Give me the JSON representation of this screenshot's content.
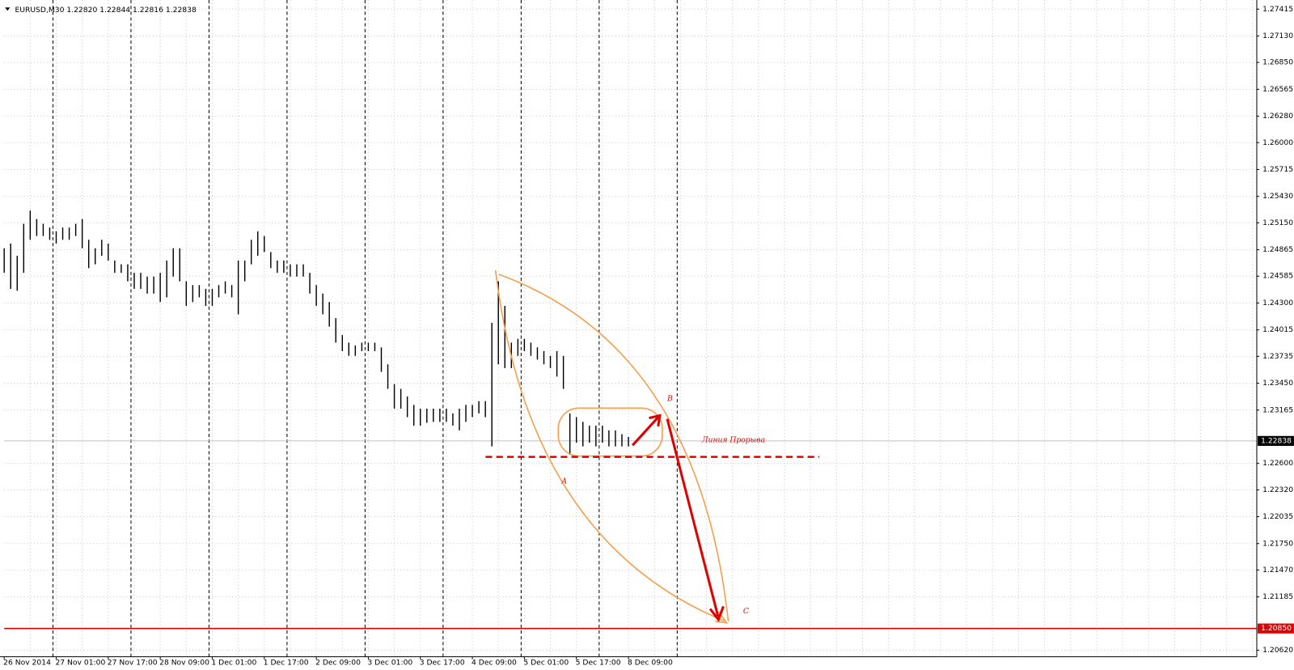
{
  "chart_data": {
    "type": "range_bar",
    "title": "EURUSD,M30  1.22820 1.22844 1.22816 1.22838",
    "categories": [
      "26 Nov 2014",
      null,
      null,
      null,
      null,
      null,
      null,
      null,
      "27 Nov 01:00",
      null,
      null,
      null,
      null,
      null,
      null,
      null,
      "27 Nov 17:00",
      null,
      null,
      null,
      null,
      null,
      null,
      null,
      "28 Nov 09:00",
      null,
      null,
      null,
      null,
      null,
      null,
      null,
      "1 Dec 01:00",
      null,
      null,
      null,
      null,
      null,
      null,
      null,
      "1 Dec 17:00",
      null,
      null,
      null,
      null,
      null,
      null,
      null,
      "2 Dec 09:00",
      null,
      null,
      null,
      null,
      null,
      null,
      null,
      "3 Dec 01:00",
      null,
      null,
      null,
      null,
      null,
      null,
      null,
      "3 Dec 17:00",
      null,
      null,
      null,
      null,
      null,
      null,
      null,
      "4 Dec 09:00",
      null,
      null,
      null,
      null,
      null,
      null,
      null,
      "5 Dec 01:00",
      null,
      null,
      null,
      null,
      null,
      null,
      null,
      "5 Dec 17:00",
      null,
      null,
      null,
      null,
      null,
      null,
      null,
      "8 Dec 09:00"
    ],
    "high": [
      1.2488,
      1.2493,
      1.248,
      1.2514,
      1.2528,
      1.2519,
      1.2514,
      1.251,
      1.2506,
      1.251,
      1.251,
      1.2514,
      1.2519,
      1.2497,
      1.2488,
      1.2497,
      1.2493,
      1.2475,
      1.2471,
      1.2471,
      1.2462,
      1.2462,
      1.2458,
      1.2458,
      1.2462,
      1.2475,
      1.2488,
      1.2488,
      1.2453,
      1.2449,
      1.2449,
      1.2445,
      1.2445,
      1.2449,
      1.2453,
      1.2449,
      1.2475,
      1.2475,
      1.2497,
      1.2506,
      1.2501,
      1.2484,
      1.2475,
      1.2475,
      1.2471,
      1.2471,
      1.2471,
      1.2462,
      1.2449,
      1.244,
      1.2431,
      1.2414,
      1.2396,
      1.2388,
      1.2385,
      1.2388,
      1.2388,
      1.2388,
      1.2383,
      1.2365,
      1.2344,
      1.2339,
      1.2331,
      1.2322,
      1.2318,
      1.2318,
      1.2318,
      1.2318,
      1.2318,
      1.2313,
      1.2318,
      1.2322,
      1.2322,
      1.2326,
      1.2326,
      1.2409,
      1.2453,
      1.2427,
      1.2388,
      1.2392,
      1.2392,
      1.2388,
      1.2383,
      1.2379,
      1.2374,
      1.2379,
      1.2374,
      1.2313,
      1.2309,
      1.2304,
      1.23,
      1.23,
      1.23,
      1.2295,
      1.2295,
      1.2291,
      1.2288
    ],
    "low": [
      1.2462,
      1.2445,
      1.2443,
      1.2462,
      1.2497,
      1.2501,
      1.2501,
      1.2497,
      1.2493,
      1.2497,
      1.2497,
      1.2501,
      1.2488,
      1.2467,
      1.2471,
      1.248,
      1.2475,
      1.2462,
      1.2462,
      1.2453,
      1.2445,
      1.2445,
      1.244,
      1.244,
      1.2431,
      1.2436,
      1.2458,
      1.2453,
      1.2427,
      1.2431,
      1.2436,
      1.2427,
      1.2427,
      1.2436,
      1.244,
      1.2436,
      1.2418,
      1.2453,
      1.2471,
      1.248,
      1.2484,
      1.2467,
      1.2462,
      1.2462,
      1.2458,
      1.2458,
      1.2458,
      1.244,
      1.2427,
      1.2418,
      1.2405,
      1.2388,
      1.2379,
      1.2374,
      1.2374,
      1.2379,
      1.2379,
      1.2379,
      1.2357,
      1.2339,
      1.2318,
      1.2318,
      1.2309,
      1.23,
      1.23,
      1.2303,
      1.2304,
      1.2304,
      1.2304,
      1.23,
      1.2295,
      1.2304,
      1.2309,
      1.2313,
      1.2309,
      1.2278,
      1.2365,
      1.2361,
      1.2361,
      1.2374,
      1.2379,
      1.2374,
      1.237,
      1.2365,
      1.2361,
      1.2352,
      1.2339,
      1.2269,
      1.2282,
      1.2278,
      1.2282,
      1.2278,
      1.2282,
      1.2278,
      1.2278,
      1.2278,
      1.2278
    ],
    "color": "#000000",
    "ylim": [
      1.2055,
      1.27468
    ],
    "yticks": [
      1.27415,
      {
        "value": 1.2713,
        "label": "1.27130"
      },
      {
        "value": 1.2685,
        "label": "1.26850"
      },
      1.26565,
      {
        "value": 1.2628,
        "label": "1.26280"
      },
      {
        "value": 1.26,
        "label": "1.26000"
      },
      1.25715,
      {
        "value": 1.2543,
        "label": "1.25430"
      },
      {
        "value": 1.2515,
        "label": "1.25150"
      },
      1.24865,
      1.24585,
      {
        "value": 1.243,
        "label": "1.24300"
      },
      1.24015,
      1.23735,
      {
        "value": 1.2345,
        "label": "1.23450"
      },
      1.23165,
      {
        "value": 1.226,
        "label": "1.22600"
      },
      {
        "value": 1.2232,
        "label": "1.22320"
      },
      1.22035,
      {
        "value": 1.2175,
        "label": "1.21750"
      },
      {
        "value": 1.2147,
        "label": "1.21470"
      },
      1.21185,
      {
        "value": 1.2062,
        "label": "1.20620"
      }
    ],
    "grid": true,
    "current_price": 1.22838,
    "level": {
      "value": 1.2085,
      "label": "1.20850"
    },
    "annotations": {
      "breakout": "Линия Прорыва",
      "a": "A",
      "b": "B",
      "c": "C"
    }
  }
}
